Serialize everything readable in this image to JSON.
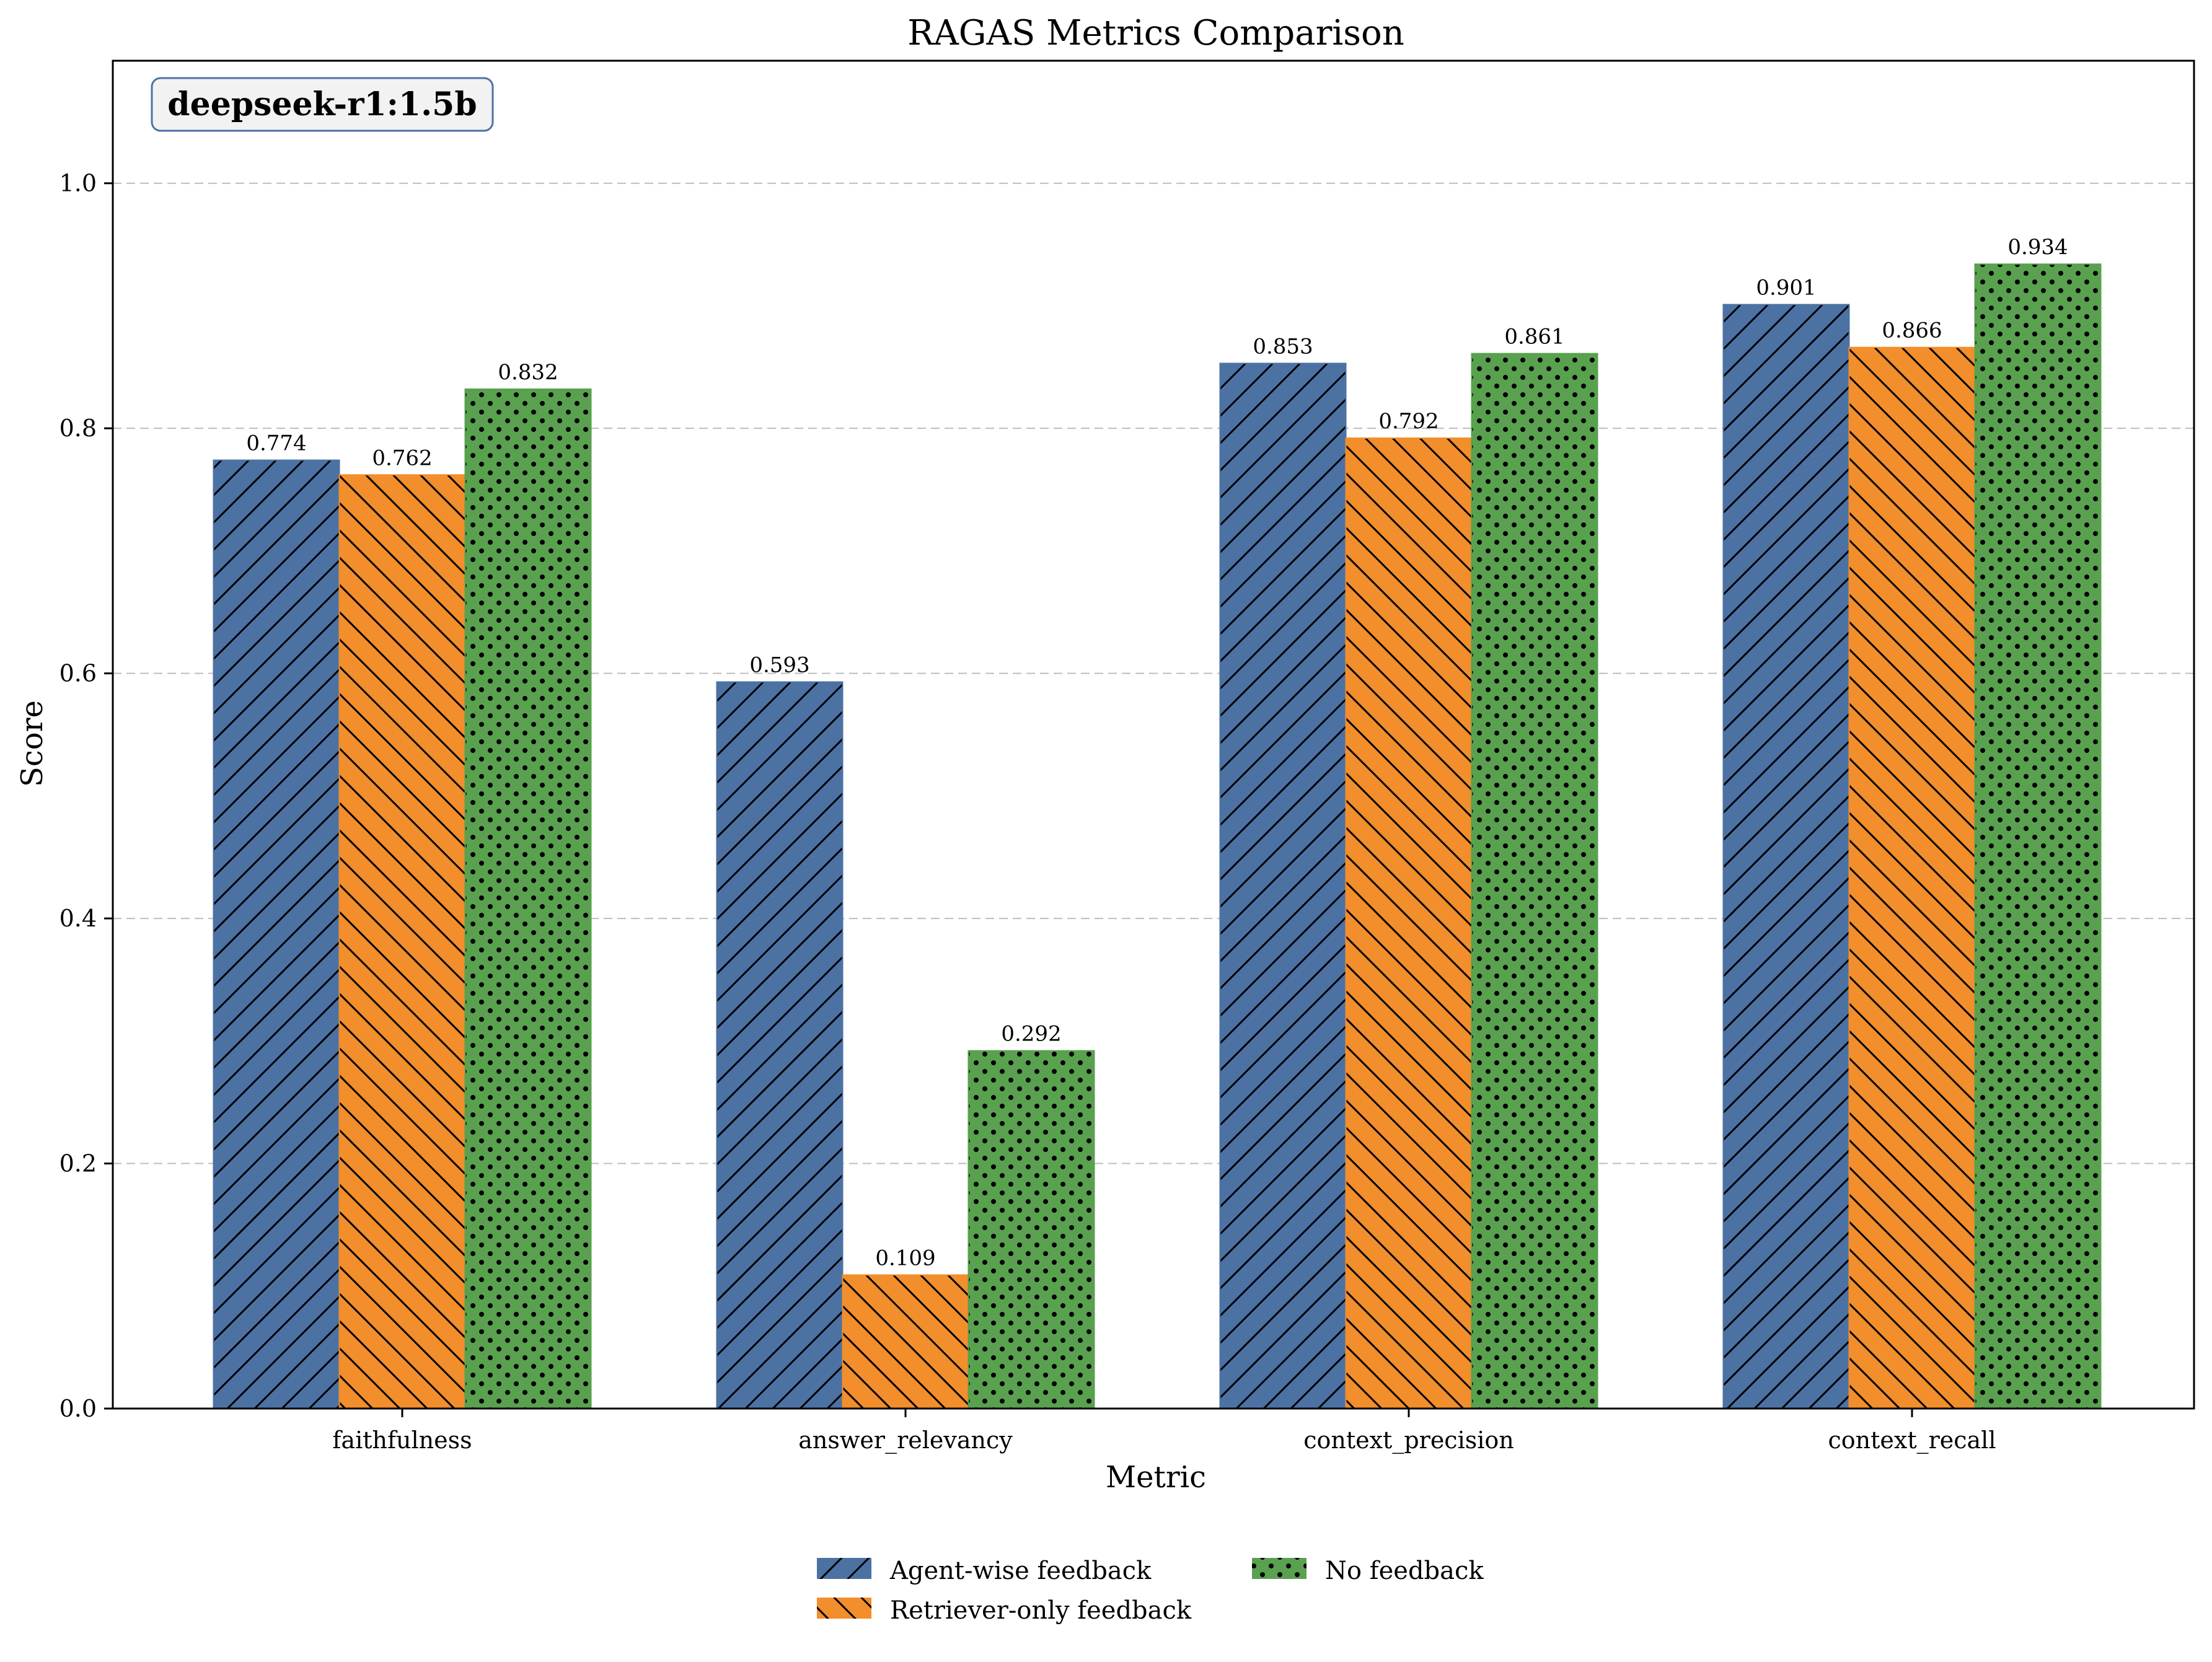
{
  "chart_data": {
    "type": "bar",
    "title": "RAGAS Metrics Comparison",
    "xlabel": "Metric",
    "ylabel": "Score",
    "ylim": [
      0,
      1.1
    ],
    "yticks": [
      0.0,
      0.2,
      0.4,
      0.6,
      0.8,
      1.0
    ],
    "ytick_labels": [
      "0.0",
      "0.2",
      "0.4",
      "0.6",
      "0.8",
      "1.0"
    ],
    "grid": "y-dashed",
    "legend_position": "bottom-center",
    "annotation": "deepseek-r1:1.5b",
    "categories": [
      "faithfulness",
      "answer_relevancy",
      "context_precision",
      "context_recall"
    ],
    "series": [
      {
        "name": "Agent-wise feedback",
        "color": "#4c72a4",
        "hatch": "forward-diagonal",
        "values": [
          0.774,
          0.593,
          0.853,
          0.901
        ],
        "labels": [
          "0.774",
          "0.593",
          "0.853",
          "0.901"
        ]
      },
      {
        "name": "Retriever-only feedback",
        "color": "#f28e2b",
        "hatch": "back-diagonal",
        "values": [
          0.762,
          0.109,
          0.792,
          0.866
        ],
        "labels": [
          "0.762",
          "0.109",
          "0.792",
          "0.866"
        ]
      },
      {
        "name": "No feedback",
        "color": "#59a14f",
        "hatch": "dots",
        "values": [
          0.832,
          0.292,
          0.861,
          0.934
        ],
        "labels": [
          "0.832",
          "0.292",
          "0.861",
          "0.934"
        ]
      }
    ]
  }
}
